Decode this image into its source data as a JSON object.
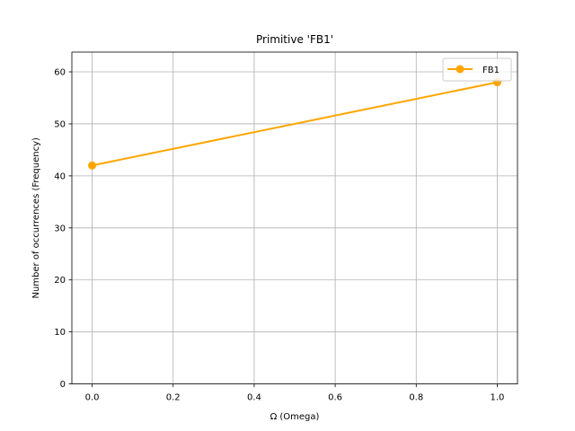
{
  "chart_data": {
    "type": "line",
    "title": "Primitive 'FB1'",
    "xlabel": "Ω (Omega)",
    "ylabel": "Number of occurrences (Frequency)",
    "xlim": [
      -0.05,
      1.05
    ],
    "ylim": [
      0,
      63.8
    ],
    "xticks": [
      0.0,
      0.2,
      0.4,
      0.6,
      0.8,
      1.0
    ],
    "xtick_labels": [
      "0.0",
      "0.2",
      "0.4",
      "0.6",
      "0.8",
      "1.0"
    ],
    "yticks": [
      0,
      10,
      20,
      30,
      40,
      50,
      60
    ],
    "ytick_labels": [
      "0",
      "10",
      "20",
      "30",
      "40",
      "50",
      "60"
    ],
    "grid": true,
    "legend_position": "top-right",
    "series": [
      {
        "name": "FB1",
        "color": "#FFA500",
        "marker": "circle",
        "x": [
          0.0,
          1.0
        ],
        "y": [
          42,
          58
        ]
      }
    ]
  }
}
